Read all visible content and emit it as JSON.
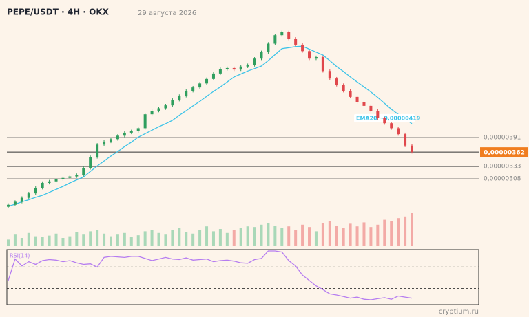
{
  "chart_data": {
    "type": "candlestick",
    "title": "PEPE/USDT · 4H · OKX",
    "date": "29 августа 2026",
    "watermark": "cryptium.ru",
    "ylim": [
      2.46e-06,
      6.54e-06
    ],
    "yticks": [
      {
        "value": 3.91e-06,
        "label": "0,00000391"
      },
      {
        "value": 3.33e-06,
        "label": "0,00000333"
      },
      {
        "value": 3.08e-06,
        "label": "0,00000308"
      }
    ],
    "last_price": {
      "value": 3.62e-06,
      "label": "0,00000362"
    },
    "up_color": "#2f9e5e",
    "down_color": "#e0474c",
    "open": [
      2.52e-06,
      2.56e-06,
      2.62e-06,
      2.7e-06,
      2.79e-06,
      2.9e-06,
      3e-06,
      3.03e-06,
      3.07e-06,
      3.1e-06,
      3.13e-06,
      3.16e-06,
      3.3e-06,
      3.52e-06,
      3.77e-06,
      3.83e-06,
      3.88e-06,
      3.95e-06,
      4.01e-06,
      4.04e-06,
      4.1e-06,
      4.38e-06,
      4.45e-06,
      4.5e-06,
      4.56e-06,
      4.67e-06,
      4.75e-06,
      4.85e-06,
      4.92e-06,
      5e-06,
      5.09e-06,
      5.2e-06,
      5.29e-06,
      5.31e-06,
      5.28e-06,
      5.34e-06,
      5.37e-06,
      5.5e-06,
      5.63e-06,
      5.8e-06,
      5.97e-06,
      6.03e-06,
      5.9e-06,
      5.78e-06,
      5.65e-06,
      5.5e-06,
      5.53e-06,
      5.25e-06,
      5.1e-06,
      4.97e-06,
      4.85e-06,
      4.73e-06,
      4.62e-06,
      4.55e-06,
      4.45e-06,
      4.3e-06,
      4.2e-06,
      4.1e-06,
      3.98e-06,
      3.75e-06
    ],
    "high": [
      2.59e-06,
      2.65e-06,
      2.73e-06,
      2.82e-06,
      2.93e-06,
      3.03e-06,
      3.06e-06,
      3.1e-06,
      3.13e-06,
      3.16e-06,
      3.19e-06,
      3.33e-06,
      3.55e-06,
      3.8e-06,
      3.86e-06,
      3.91e-06,
      3.98e-06,
      4.04e-06,
      4.07e-06,
      4.13e-06,
      4.41e-06,
      4.48e-06,
      4.53e-06,
      4.59e-06,
      4.7e-06,
      4.78e-06,
      4.88e-06,
      4.95e-06,
      5.03e-06,
      5.12e-06,
      5.23e-06,
      5.32e-06,
      5.34e-06,
      5.34e-06,
      5.37e-06,
      5.4e-06,
      5.53e-06,
      5.66e-06,
      5.83e-06,
      6e-06,
      6.06e-06,
      6.06e-06,
      5.93e-06,
      5.81e-06,
      5.68e-06,
      5.56e-06,
      5.56e-06,
      5.28e-06,
      5.13e-06,
      5e-06,
      4.88e-06,
      4.76e-06,
      4.65e-06,
      4.58e-06,
      4.48e-06,
      4.33e-06,
      4.23e-06,
      4.13e-06,
      4.01e-06,
      3.78e-06
    ],
    "low": [
      2.49e-06,
      2.53e-06,
      2.59e-06,
      2.67e-06,
      2.76e-06,
      2.87e-06,
      2.97e-06,
      3e-06,
      3.04e-06,
      3.07e-06,
      3.1e-06,
      3.13e-06,
      3.27e-06,
      3.49e-06,
      3.74e-06,
      3.8e-06,
      3.85e-06,
      3.92e-06,
      3.98e-06,
      4.01e-06,
      4.07e-06,
      4.35e-06,
      4.42e-06,
      4.47e-06,
      4.53e-06,
      4.64e-06,
      4.72e-06,
      4.82e-06,
      4.89e-06,
      4.97e-06,
      5.06e-06,
      5.17e-06,
      5.26e-06,
      5.25e-06,
      5.25e-06,
      5.31e-06,
      5.34e-06,
      5.47e-06,
      5.6e-06,
      5.77e-06,
      5.94e-06,
      5.87e-06,
      5.75e-06,
      5.62e-06,
      5.47e-06,
      5.47e-06,
      5.22e-06,
      5.07e-06,
      4.94e-06,
      4.82e-06,
      4.7e-06,
      4.59e-06,
      4.52e-06,
      4.42e-06,
      4.27e-06,
      4.17e-06,
      4.07e-06,
      3.95e-06,
      3.72e-06,
      3.59e-06
    ],
    "close": [
      2.56e-06,
      2.62e-06,
      2.7e-06,
      2.79e-06,
      2.9e-06,
      3e-06,
      3.03e-06,
      3.07e-06,
      3.1e-06,
      3.13e-06,
      3.16e-06,
      3.3e-06,
      3.52e-06,
      3.77e-06,
      3.83e-06,
      3.88e-06,
      3.95e-06,
      4.01e-06,
      4.04e-06,
      4.1e-06,
      4.38e-06,
      4.45e-06,
      4.5e-06,
      4.56e-06,
      4.67e-06,
      4.75e-06,
      4.85e-06,
      4.92e-06,
      5e-06,
      5.09e-06,
      5.2e-06,
      5.29e-06,
      5.31e-06,
      5.28e-06,
      5.34e-06,
      5.37e-06,
      5.5e-06,
      5.63e-06,
      5.8e-06,
      5.97e-06,
      6.03e-06,
      5.9e-06,
      5.78e-06,
      5.65e-06,
      5.5e-06,
      5.53e-06,
      5.25e-06,
      5.1e-06,
      4.97e-06,
      4.85e-06,
      4.73e-06,
      4.62e-06,
      4.55e-06,
      4.45e-06,
      4.3e-06,
      4.2e-06,
      4.1e-06,
      3.98e-06,
      3.75e-06,
      3.62e-06
    ],
    "ema": {
      "name": "EMA20 ~0,00000419",
      "color": "#3cc3e8",
      "values": [
        2.53e-06,
        2.57e-06,
        2.62e-06,
        2.66e-06,
        2.71e-06,
        2.75e-06,
        2.81e-06,
        2.87e-06,
        2.93e-06,
        3e-06,
        3.06e-06,
        3.12e-06,
        3.23e-06,
        3.34e-06,
        3.44e-06,
        3.54e-06,
        3.63e-06,
        3.73e-06,
        3.82e-06,
        3.92e-06,
        3.99e-06,
        4.06e-06,
        4.13e-06,
        4.19e-06,
        4.26e-06,
        4.36e-06,
        4.45e-06,
        4.55e-06,
        4.64e-06,
        4.74e-06,
        4.84e-06,
        4.93e-06,
        5.03e-06,
        5.13e-06,
        5.19e-06,
        5.25e-06,
        5.3e-06,
        5.35e-06,
        5.46e-06,
        5.58e-06,
        5.7e-06,
        5.72e-06,
        5.74e-06,
        5.75e-06,
        5.69e-06,
        5.63e-06,
        5.57e-06,
        5.46e-06,
        5.34e-06,
        5.24e-06,
        5.13e-06,
        5.03e-06,
        4.93e-06,
        4.83e-06,
        4.72e-06,
        4.6e-06,
        4.48e-06,
        4.38e-06,
        4.29e-06,
        4.19e-06
      ]
    },
    "volume": {
      "lim": [
        0,
        100
      ],
      "up_color": "#a9d8b8",
      "down_color": "#f3aaa6",
      "values": [
        20,
        35,
        25,
        40,
        30,
        28,
        32,
        38,
        25,
        30,
        42,
        35,
        45,
        50,
        38,
        30,
        35,
        40,
        28,
        33,
        45,
        50,
        40,
        35,
        48,
        55,
        42,
        38,
        50,
        60,
        45,
        52,
        40,
        48,
        55,
        60,
        58,
        65,
        70,
        62,
        55,
        60,
        50,
        65,
        58,
        45,
        70,
        75,
        62,
        55,
        68,
        60,
        72,
        58,
        65,
        80,
        75,
        85,
        90,
        100
      ]
    },
    "rsi": {
      "name": "RSI(14)",
      "color": "#b57cf0",
      "lim": [
        0,
        100
      ],
      "levels": [
        70,
        30
      ],
      "values": [
        45,
        85,
        72,
        80,
        75,
        82,
        84,
        83,
        80,
        82,
        78,
        75,
        76,
        70,
        88,
        90,
        89,
        88,
        90,
        90,
        86,
        82,
        85,
        88,
        85,
        84,
        87,
        83,
        84,
        85,
        80,
        82,
        83,
        81,
        78,
        77,
        84,
        86,
        100,
        100,
        98,
        82,
        72,
        55,
        45,
        35,
        28,
        20,
        18,
        15,
        12,
        14,
        10,
        9,
        11,
        13,
        10,
        16,
        14,
        12
      ]
    }
  }
}
